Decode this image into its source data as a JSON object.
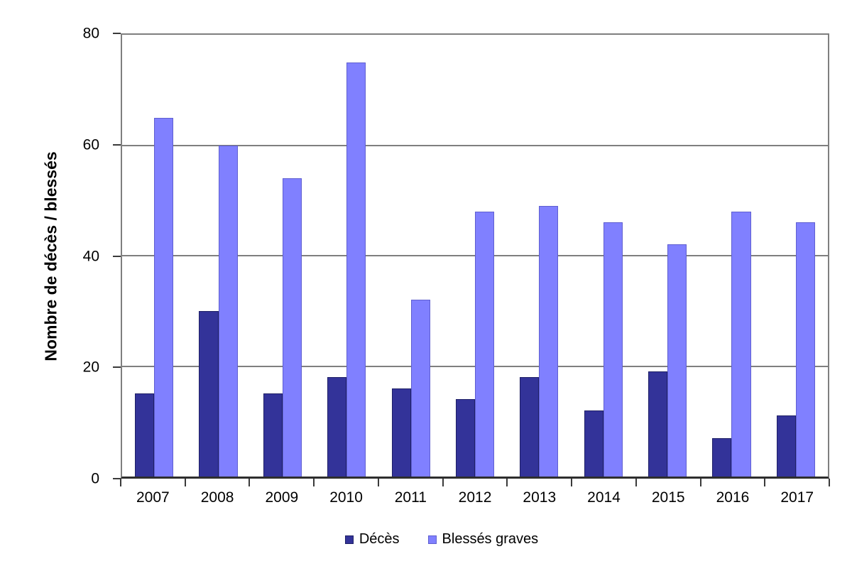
{
  "chart_data": {
    "type": "bar",
    "title": "",
    "xlabel": "",
    "ylabel": "Nombre de décès / blessés",
    "ylim": [
      0,
      80
    ],
    "yticks": [
      0,
      20,
      40,
      60,
      80
    ],
    "grid": true,
    "legend_position": "bottom",
    "categories": [
      "2007",
      "2008",
      "2009",
      "2010",
      "2011",
      "2012",
      "2013",
      "2014",
      "2015",
      "2016",
      "2017"
    ],
    "series": [
      {
        "name": "Décès",
        "color": "#333399",
        "border_color": "#1F2066",
        "values": [
          15,
          30,
          15,
          18,
          16,
          14,
          18,
          12,
          19,
          7,
          11
        ]
      },
      {
        "name": "Blessés graves",
        "color": "#8080FF",
        "border_color": "#5F5FD0",
        "values": [
          65,
          60,
          54,
          75,
          32,
          48,
          49,
          46,
          42,
          48,
          46
        ]
      }
    ]
  },
  "axes": {
    "grid_color": "#7F7F7F",
    "axis_color": "#3A3A3A"
  }
}
